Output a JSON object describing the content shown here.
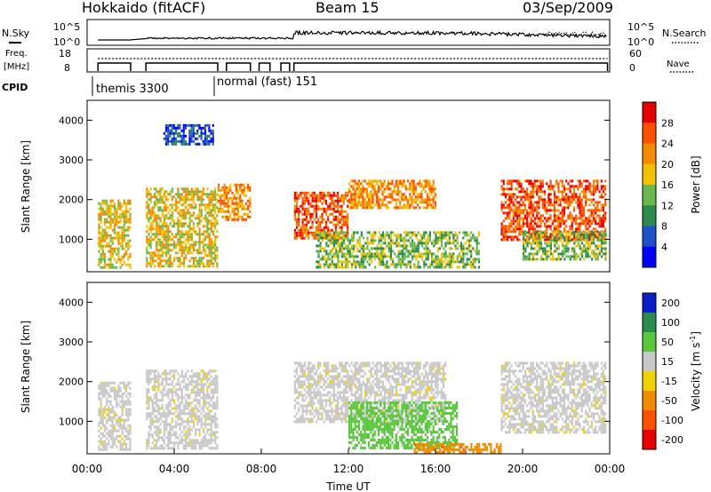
{
  "header": {
    "station": "Hokkaido (fitACF)",
    "beam": "Beam 15",
    "date": "03/Sep/2009"
  },
  "noise_panel": {
    "left_label": "N.Sky",
    "left_ticks": [
      "10^5",
      "10^0"
    ],
    "right_ticks": [
      "10^5",
      "10^0"
    ],
    "right_label": "N.Search"
  },
  "freq_panel": {
    "left_label_1": "Freq.",
    "left_label_2": "[MHz]",
    "left_ticks": [
      "18",
      "8"
    ],
    "right_ticks": [
      "60",
      "0"
    ],
    "right_label": "Nave"
  },
  "cpid_panel": {
    "label": "CPID",
    "modes": [
      {
        "name": "themis 3300",
        "start_ut": 0.5
      },
      {
        "name": "normal (fast) 151",
        "start_ut": 6.0
      }
    ]
  },
  "colors": {
    "power_scale": [
      "#0000ff",
      "#1e50c8",
      "#2c8a4f",
      "#6ab84e",
      "#f2c200",
      "#f28c00",
      "#ff5000",
      "#e60000"
    ],
    "velocity_scale": [
      "#0a1ec8",
      "#2c8a4f",
      "#5ac83c",
      "#c8c8c8",
      "#f0d200",
      "#f08c00",
      "#ff5000",
      "#e60000"
    ]
  },
  "chart_data": [
    {
      "type": "heatmap",
      "name": "power",
      "ylabel": "Slant Range [km]",
      "yticks": [
        "1000",
        "2000",
        "3000",
        "4000"
      ],
      "xlim_ut": [
        0,
        24
      ],
      "ylim_km": [
        180,
        4500
      ],
      "colorbar": {
        "label": "Power [dB]",
        "ticks": [
          "4",
          "8",
          "12",
          "16",
          "20",
          "24",
          "28"
        ],
        "range": [
          0,
          32
        ]
      },
      "echo_regions": [
        {
          "ut": [
            0.5,
            2.0
          ],
          "km": [
            300,
            2000
          ],
          "value": 18
        },
        {
          "ut": [
            2.7,
            6.0
          ],
          "km": [
            300,
            2300
          ],
          "value": 20
        },
        {
          "ut": [
            3.5,
            5.8
          ],
          "km": [
            3400,
            3900
          ],
          "value": 8
        },
        {
          "ut": [
            6.0,
            7.5
          ],
          "km": [
            1500,
            2400
          ],
          "value": 24
        },
        {
          "ut": [
            9.5,
            12.0
          ],
          "km": [
            1000,
            2200
          ],
          "value": 26
        },
        {
          "ut": [
            12.0,
            16.0
          ],
          "km": [
            1800,
            2500
          ],
          "value": 24
        },
        {
          "ut": [
            10.5,
            18.0
          ],
          "km": [
            300,
            1200
          ],
          "value": 16
        },
        {
          "ut": [
            19.0,
            23.8
          ],
          "km": [
            1000,
            2500
          ],
          "value": 26
        },
        {
          "ut": [
            20.0,
            23.8
          ],
          "km": [
            500,
            1200
          ],
          "value": 14
        }
      ]
    },
    {
      "type": "heatmap",
      "name": "velocity",
      "ylabel": "Slant Range [km]",
      "yticks": [
        "1000",
        "2000",
        "3000",
        "4000"
      ],
      "xlabel": "Time UT",
      "xticks": [
        "00:00",
        "04:00",
        "08:00",
        "12:00",
        "16:00",
        "20:00",
        "00:00"
      ],
      "xlim_ut": [
        0,
        24
      ],
      "ylim_km": [
        180,
        4500
      ],
      "colorbar": {
        "label": "Velocity [m s",
        "label_sup": "-1",
        "label_end": "]",
        "ticks": [
          "200",
          "100",
          "50",
          "15",
          "-15",
          "-50",
          "-100",
          "-200"
        ]
      },
      "echo_regions": [
        {
          "ut": [
            0.5,
            2.0
          ],
          "km": [
            300,
            2000
          ],
          "value": 0
        },
        {
          "ut": [
            2.7,
            6.0
          ],
          "km": [
            300,
            2300
          ],
          "value": 0
        },
        {
          "ut": [
            9.5,
            16.5
          ],
          "km": [
            1000,
            2500
          ],
          "value": 0
        },
        {
          "ut": [
            12.0,
            17.0
          ],
          "km": [
            300,
            1500
          ],
          "value": 50
        },
        {
          "ut": [
            15.0,
            19.0
          ],
          "km": [
            200,
            450
          ],
          "value": -80
        },
        {
          "ut": [
            19.0,
            23.8
          ],
          "km": [
            700,
            2500
          ],
          "value": 0
        }
      ]
    }
  ]
}
